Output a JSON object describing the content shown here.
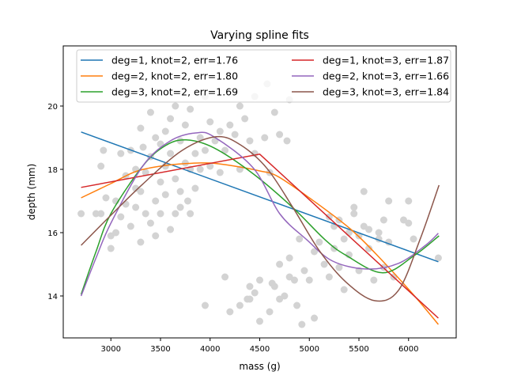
{
  "chart_data": {
    "type": "line",
    "title": "Varying spline fits",
    "xlabel": "mass (g)",
    "ylabel": "depth (mm)",
    "xlim": [
      2520,
      6480
    ],
    "ylim": [
      12.675,
      21.9
    ],
    "xticks": [
      3000,
      3500,
      4000,
      4500,
      5000,
      5500,
      6000
    ],
    "yticks": [
      14,
      16,
      18,
      20
    ],
    "grid": false,
    "legend_placement": "top",
    "scatter_color": "#d3d3d3",
    "scatter": [
      [
        2700,
        16.6
      ],
      [
        2850,
        16.6
      ],
      [
        2900,
        16.6
      ],
      [
        2900,
        18.1
      ],
      [
        2925,
        18.6
      ],
      [
        2950,
        17.1
      ],
      [
        3000,
        15.5
      ],
      [
        3000,
        15.9
      ],
      [
        3050,
        16.0
      ],
      [
        3050,
        17.0
      ],
      [
        3100,
        16.5
      ],
      [
        3100,
        18.5
      ],
      [
        3150,
        17.8
      ],
      [
        3150,
        16.9
      ],
      [
        3200,
        18.6
      ],
      [
        3200,
        16.2
      ],
      [
        3250,
        18.0
      ],
      [
        3250,
        17.4
      ],
      [
        3250,
        16.8
      ],
      [
        3300,
        19.3
      ],
      [
        3300,
        17.3
      ],
      [
        3300,
        15.7
      ],
      [
        3325,
        18.7
      ],
      [
        3350,
        16.6
      ],
      [
        3350,
        17.9
      ],
      [
        3400,
        18.4
      ],
      [
        3400,
        16.3
      ],
      [
        3400,
        19.8
      ],
      [
        3450,
        19.0
      ],
      [
        3450,
        17.0
      ],
      [
        3450,
        15.9
      ],
      [
        3500,
        18.8
      ],
      [
        3500,
        17.6
      ],
      [
        3500,
        16.6
      ],
      [
        3550,
        19.2
      ],
      [
        3550,
        18.1
      ],
      [
        3550,
        17.2
      ],
      [
        3600,
        16.1
      ],
      [
        3600,
        18.5
      ],
      [
        3600,
        19.6
      ],
      [
        3650,
        17.7
      ],
      [
        3650,
        16.6
      ],
      [
        3650,
        20.0
      ],
      [
        3700,
        18.9
      ],
      [
        3700,
        17.3
      ],
      [
        3700,
        16.8
      ],
      [
        3750,
        19.4
      ],
      [
        3750,
        18.2
      ],
      [
        3775,
        17.0
      ],
      [
        3800,
        18.0
      ],
      [
        3800,
        16.6
      ],
      [
        3800,
        19.9
      ],
      [
        3850,
        18.5
      ],
      [
        3850,
        17.4
      ],
      [
        3900,
        19.0
      ],
      [
        3900,
        18.0
      ],
      [
        3950,
        13.7
      ],
      [
        3950,
        20.3
      ],
      [
        3950,
        18.6
      ],
      [
        4000,
        18.1
      ],
      [
        4000,
        19.5
      ],
      [
        4050,
        18.9
      ],
      [
        4100,
        17.9
      ],
      [
        4100,
        19.2
      ],
      [
        4150,
        18.6
      ],
      [
        4200,
        19.4
      ],
      [
        4250,
        19.1
      ],
      [
        4300,
        18.0
      ],
      [
        4300,
        20.0
      ],
      [
        4350,
        19.6
      ],
      [
        4400,
        18.9
      ],
      [
        4450,
        18.5
      ],
      [
        4450,
        20.3
      ],
      [
        4550,
        19.0
      ],
      [
        4575,
        20.7
      ],
      [
        4600,
        17.9
      ],
      [
        4650,
        19.8
      ],
      [
        4700,
        19.1
      ],
      [
        4775,
        18.9
      ],
      [
        4800,
        20.2
      ],
      [
        4150,
        14.6
      ],
      [
        4200,
        13.5
      ],
      [
        4300,
        13.7
      ],
      [
        4375,
        13.9
      ],
      [
        4400,
        14.3
      ],
      [
        4400,
        13.9
      ],
      [
        4450,
        14.1
      ],
      [
        4500,
        14.5
      ],
      [
        4500,
        13.2
      ],
      [
        4600,
        13.5
      ],
      [
        4625,
        14.4
      ],
      [
        4650,
        14.3
      ],
      [
        4700,
        13.9
      ],
      [
        4700,
        15.0
      ],
      [
        4750,
        14.0
      ],
      [
        4800,
        15.2
      ],
      [
        4800,
        14.6
      ],
      [
        4850,
        14.5
      ],
      [
        4875,
        13.7
      ],
      [
        4900,
        15.8
      ],
      [
        4925,
        13.1
      ],
      [
        4950,
        14.8
      ],
      [
        5000,
        14.5
      ],
      [
        5050,
        15.4
      ],
      [
        5050,
        13.3
      ],
      [
        5100,
        15.7
      ],
      [
        5150,
        15.0
      ],
      [
        5200,
        14.6
      ],
      [
        5250,
        15.5
      ],
      [
        5300,
        16.4
      ],
      [
        5300,
        14.9
      ],
      [
        5350,
        15.8
      ],
      [
        5350,
        14.2
      ],
      [
        5400,
        16.0
      ],
      [
        5400,
        15.3
      ],
      [
        5450,
        16.8
      ],
      [
        5500,
        15.9
      ],
      [
        5500,
        14.8
      ],
      [
        5550,
        17.3
      ],
      [
        5550,
        16.2
      ],
      [
        5600,
        15.5
      ],
      [
        5650,
        14.5
      ],
      [
        5700,
        16.0
      ],
      [
        5700,
        15.8
      ],
      [
        5750,
        14.9
      ],
      [
        5800,
        15.7
      ],
      [
        5850,
        14.6
      ],
      [
        5950,
        16.4
      ],
      [
        6000,
        17.0
      ],
      [
        6000,
        16.3
      ],
      [
        6050,
        15.8
      ],
      [
        6300,
        15.2
      ],
      [
        5200,
        16.5
      ],
      [
        5250,
        16.2
      ],
      [
        5450,
        16.6
      ],
      [
        5600,
        16.1
      ],
      [
        5750,
        16.4
      ],
      [
        5800,
        17.0
      ]
    ],
    "series": [
      {
        "name": "deg=1, knot=2, err=1.76",
        "color": "#1f77b4",
        "points": [
          [
            2700,
            19.18
          ],
          [
            6300,
            15.08
          ]
        ]
      },
      {
        "name": "deg=2, knot=2, err=1.80",
        "color": "#ff7f0e",
        "points": [
          [
            2700,
            17.1
          ],
          [
            3000,
            17.55
          ],
          [
            3250,
            17.93
          ],
          [
            3500,
            18.1
          ],
          [
            3750,
            18.18
          ],
          [
            4000,
            18.2
          ],
          [
            4250,
            18.1
          ],
          [
            4500,
            17.95
          ],
          [
            4680,
            17.78
          ],
          [
            5000,
            17.1
          ],
          [
            5420,
            16.1
          ],
          [
            5740,
            15.1
          ],
          [
            6060,
            14.0
          ],
          [
            6300,
            13.1
          ]
        ]
      },
      {
        "name": "deg=3, knot=2, err=1.69",
        "color": "#2ca02c",
        "points": [
          [
            2700,
            14.05
          ],
          [
            2850,
            15.4
          ],
          [
            3000,
            16.6
          ],
          [
            3320,
            18.1
          ],
          [
            3550,
            18.75
          ],
          [
            3759,
            18.93
          ],
          [
            4038,
            18.68
          ],
          [
            4438,
            17.85
          ],
          [
            4837,
            16.78
          ],
          [
            5157,
            15.78
          ],
          [
            5372,
            15.28
          ],
          [
            5740,
            14.73
          ],
          [
            6059,
            15.28
          ],
          [
            6307,
            15.9
          ]
        ]
      },
      {
        "name": "deg=1, knot=3, err=1.87",
        "color": "#d62728",
        "points": [
          [
            2700,
            17.43
          ],
          [
            4500,
            18.48
          ],
          [
            6300,
            13.3
          ]
        ]
      },
      {
        "name": "deg=2, knot=3, err=1.66",
        "color": "#9467bd",
        "points": [
          [
            2700,
            14.0
          ],
          [
            2850,
            15.2
          ],
          [
            3000,
            16.3
          ],
          [
            3320,
            18.1
          ],
          [
            3600,
            18.9
          ],
          [
            3855,
            19.15
          ],
          [
            4038,
            19.03
          ],
          [
            4438,
            18.03
          ],
          [
            4701,
            16.6
          ],
          [
            4973,
            15.78
          ],
          [
            5236,
            15.1
          ],
          [
            5580,
            14.85
          ],
          [
            5899,
            15.03
          ],
          [
            6171,
            15.6
          ],
          [
            6300,
            15.98
          ]
        ]
      },
      {
        "name": "deg=3, knot=3, err=1.84",
        "color": "#8c564b",
        "points": [
          [
            2700,
            15.6
          ],
          [
            3000,
            16.55
          ],
          [
            3320,
            17.53
          ],
          [
            3719,
            18.6
          ],
          [
            4062,
            19.03
          ],
          [
            4302,
            18.78
          ],
          [
            4573,
            18.03
          ],
          [
            4837,
            16.78
          ],
          [
            5101,
            15.43
          ],
          [
            5372,
            14.43
          ],
          [
            5660,
            13.85
          ],
          [
            5899,
            14.18
          ],
          [
            6115,
            15.78
          ],
          [
            6307,
            17.5
          ]
        ]
      }
    ]
  }
}
